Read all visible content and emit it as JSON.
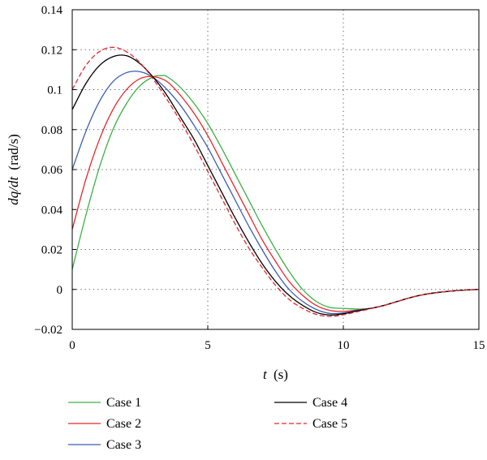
{
  "chart_data": {
    "type": "line",
    "xlabel_var": "t",
    "xlabel_unit": "(s)",
    "ylabel_var": "dq/dt",
    "ylabel_unit": "(rad/s)",
    "xlim": [
      0,
      15
    ],
    "ylim": [
      -0.02,
      0.14
    ],
    "x_ticks": [
      0,
      5,
      10,
      15
    ],
    "y_ticks": [
      -0.02,
      0,
      0.02,
      0.04,
      0.06,
      0.08,
      0.1,
      0.12,
      0.14
    ],
    "x_tick_labels": [
      "0",
      "5",
      "10",
      "15"
    ],
    "y_tick_labels": [
      "−0.02",
      "0",
      "0.02",
      "0.04",
      "0.06",
      "0.08",
      "0.1",
      "0.12",
      "0.14"
    ],
    "grid": "dotted",
    "legend_position": "below",
    "series": [
      {
        "name": "Case 1",
        "color": "#3cb043",
        "dash": "solid",
        "x": [
          0,
          0.5,
          1,
          1.5,
          2,
          2.5,
          3,
          3.3,
          3.5,
          4,
          4.5,
          5,
          5.5,
          6,
          6.5,
          7,
          7.5,
          8,
          8.5,
          9,
          9.5,
          10,
          10.5,
          11,
          11.5,
          12,
          12.5,
          13,
          13.5,
          14,
          14.5,
          15
        ],
        "y": [
          0.01,
          0.037,
          0.061,
          0.08,
          0.093,
          0.102,
          0.1065,
          0.107,
          0.1065,
          0.101,
          0.093,
          0.083,
          0.071,
          0.058,
          0.045,
          0.032,
          0.02,
          0.009,
          0.0,
          -0.006,
          -0.009,
          -0.0095,
          -0.0098,
          -0.0095,
          -0.008,
          -0.006,
          -0.004,
          -0.0025,
          -0.0015,
          -0.0008,
          -0.0003,
          0.0
        ]
      },
      {
        "name": "Case 2",
        "color": "#e8262b",
        "dash": "solid",
        "x": [
          0,
          0.5,
          1,
          1.5,
          2,
          2.5,
          3,
          3.5,
          4,
          4.5,
          5,
          5.5,
          6,
          6.5,
          7,
          7.5,
          8,
          8.5,
          9,
          9.5,
          10,
          10.5,
          11,
          11.5,
          12,
          12.5,
          13,
          13.5,
          14,
          14.5,
          15
        ],
        "y": [
          0.03,
          0.055,
          0.075,
          0.09,
          0.1,
          0.1055,
          0.1065,
          0.104,
          0.097,
          0.088,
          0.077,
          0.064,
          0.051,
          0.038,
          0.025,
          0.014,
          0.004,
          -0.003,
          -0.008,
          -0.0105,
          -0.011,
          -0.0103,
          -0.0095,
          -0.008,
          -0.006,
          -0.004,
          -0.0025,
          -0.0015,
          -0.0008,
          -0.0003,
          0.0
        ]
      },
      {
        "name": "Case 3",
        "color": "#3a5fb0",
        "dash": "solid",
        "x": [
          0,
          0.5,
          1,
          1.5,
          2,
          2.5,
          3,
          3.5,
          4,
          4.5,
          5,
          5.5,
          6,
          6.5,
          7,
          7.5,
          8,
          8.5,
          9,
          9.5,
          10,
          10.5,
          11,
          11.5,
          12,
          12.5,
          13,
          13.5,
          14,
          14.5,
          15
        ],
        "y": [
          0.06,
          0.079,
          0.094,
          0.104,
          0.1085,
          0.109,
          0.106,
          0.1,
          0.092,
          0.082,
          0.071,
          0.058,
          0.045,
          0.032,
          0.02,
          0.009,
          0.0,
          -0.006,
          -0.01,
          -0.012,
          -0.0118,
          -0.0105,
          -0.0095,
          -0.008,
          -0.006,
          -0.004,
          -0.0025,
          -0.0015,
          -0.0008,
          -0.0003,
          0.0
        ]
      },
      {
        "name": "Case 4",
        "color": "#000000",
        "dash": "solid",
        "x": [
          0,
          0.5,
          1,
          1.5,
          2,
          2.5,
          3,
          3.5,
          4,
          4.5,
          5,
          5.5,
          6,
          6.5,
          7,
          7.5,
          8,
          8.5,
          9,
          9.5,
          10,
          10.5,
          11,
          11.5,
          12,
          12.5,
          13,
          13.5,
          14,
          14.5,
          15
        ],
        "y": [
          0.09,
          0.103,
          0.112,
          0.1165,
          0.117,
          0.113,
          0.106,
          0.097,
          0.086,
          0.075,
          0.062,
          0.049,
          0.036,
          0.024,
          0.013,
          0.004,
          -0.003,
          -0.008,
          -0.0115,
          -0.0128,
          -0.0122,
          -0.0108,
          -0.0095,
          -0.008,
          -0.006,
          -0.004,
          -0.0025,
          -0.0015,
          -0.0008,
          -0.0003,
          0.0
        ]
      },
      {
        "name": "Case 5",
        "color": "#e8262b",
        "dash": "dashed",
        "x": [
          0,
          0.5,
          1,
          1.5,
          2,
          2.5,
          3,
          3.5,
          4,
          4.5,
          5,
          5.5,
          6,
          6.5,
          7,
          7.5,
          8,
          8.5,
          9,
          9.5,
          10,
          10.5,
          11,
          11.5,
          12,
          12.5,
          13,
          13.5,
          14,
          14.5,
          15
        ],
        "y": [
          0.1,
          0.112,
          0.119,
          0.1212,
          0.119,
          0.1135,
          0.105,
          0.095,
          0.084,
          0.072,
          0.059,
          0.046,
          0.033,
          0.021,
          0.011,
          0.002,
          -0.005,
          -0.0095,
          -0.0125,
          -0.0135,
          -0.0127,
          -0.0112,
          -0.0097,
          -0.008,
          -0.006,
          -0.004,
          -0.0025,
          -0.0015,
          -0.0008,
          -0.0003,
          0.0
        ]
      }
    ]
  }
}
